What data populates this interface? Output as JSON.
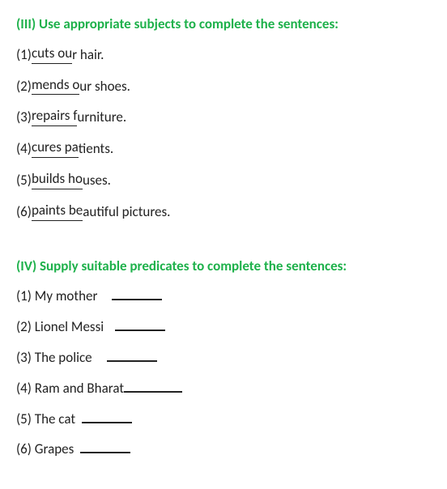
{
  "section3": {
    "heading": "(III) Use appropriate subjects to complete the sentences:",
    "items": [
      {
        "num": "(1)",
        "blank_text": " cuts ou",
        "rest": "r hair.",
        "blank_width": 56
      },
      {
        "num": "(2)",
        "blank_text": " mends o",
        "rest": "ur shoes.",
        "blank_width": 66
      },
      {
        "num": "(3)",
        "blank_text": " repairs f",
        "rest": "urniture.",
        "blank_width": 66
      },
      {
        "num": "(4)",
        "blank_text": " cures pa",
        "rest": "tients.",
        "blank_width": 66
      },
      {
        "num": "(5)",
        "blank_text": " builds ho",
        "rest": "uses.",
        "blank_width": 72
      },
      {
        "num": "(6)",
        "blank_text": " paints be",
        "rest": "autiful pictures.",
        "blank_width": 72
      }
    ]
  },
  "section4": {
    "heading": "(IV) Supply suitable predicates to complete the sentences:",
    "items": [
      {
        "num": "(1)",
        "text": "My mother",
        "blank_width": 62,
        "blank_margin": 18
      },
      {
        "num": "(2)",
        "text": "Lionel Messi",
        "blank_width": 62,
        "blank_margin": 14
      },
      {
        "num": "(3)",
        "text": "The police",
        "blank_width": 62,
        "blank_margin": 18
      },
      {
        "num": "(4)",
        "text": "Ram and Bharat",
        "blank_width": 72,
        "blank_margin": 0
      },
      {
        "num": "(5)",
        "text": "The cat",
        "blank_width": 62,
        "blank_margin": 8
      },
      {
        "num": "(6)",
        "text": "Grapes",
        "blank_width": 62,
        "blank_margin": 8
      }
    ]
  }
}
